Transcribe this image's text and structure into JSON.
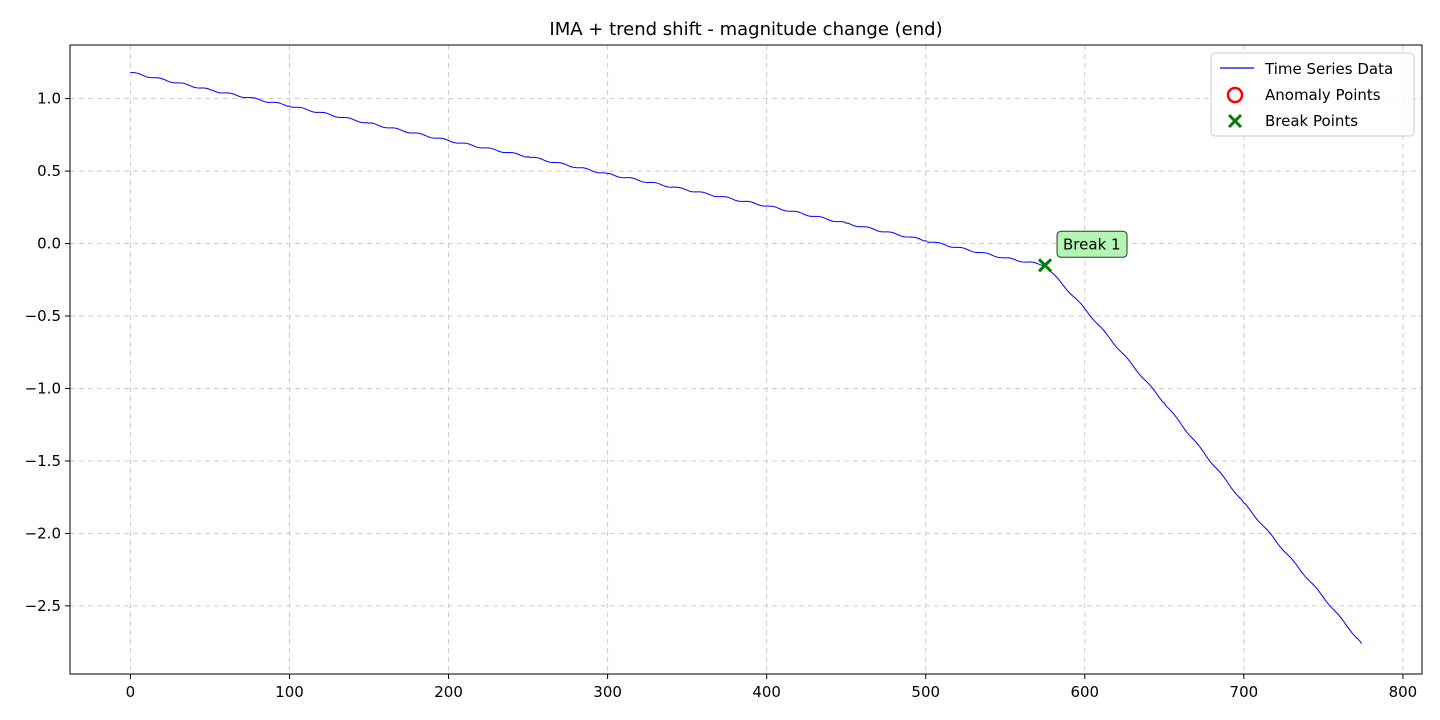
{
  "chart_data": {
    "type": "line",
    "title": "IMA + trend shift - magnitude change (end)",
    "xlabel": "",
    "ylabel": "",
    "xlim": [
      -38,
      812
    ],
    "ylim": [
      -2.97,
      1.37
    ],
    "x_ticks": [
      0,
      100,
      200,
      300,
      400,
      500,
      600,
      700,
      800
    ],
    "y_ticks": [
      1.0,
      0.5,
      0.0,
      -0.5,
      -1.0,
      -1.5,
      -2.0,
      -2.5
    ],
    "x_tick_labels": [
      "0",
      "100",
      "200",
      "300",
      "400",
      "500",
      "600",
      "700",
      "800"
    ],
    "y_tick_labels": [
      "1.0",
      "0.5",
      "0.0",
      "−0.5",
      "−1.0",
      "−1.5",
      "−2.0",
      "−2.5"
    ],
    "grid": true,
    "legend_position": "top-right",
    "series": [
      {
        "name": "Time Series Data",
        "color": "#0000ff",
        "x": [
          0,
          50,
          100,
          150,
          200,
          250,
          300,
          350,
          400,
          450,
          500,
          550,
          575,
          600,
          650,
          700,
          750,
          774
        ],
        "y": [
          1.18,
          1.06,
          0.95,
          0.83,
          0.71,
          0.6,
          0.48,
          0.37,
          0.26,
          0.14,
          0.02,
          -0.1,
          -0.15,
          -0.45,
          -1.1,
          -1.79,
          -2.44,
          -2.76
        ]
      }
    ],
    "anomaly_points": {
      "name": "Anomaly Points",
      "color": "#ff0000",
      "x": [],
      "y": []
    },
    "break_points": {
      "name": "Break Points",
      "color": "#008000",
      "x": [
        575
      ],
      "y": [
        -0.15
      ],
      "labels": [
        "Break 1"
      ]
    },
    "annotation_color": "#b3f5b3"
  }
}
